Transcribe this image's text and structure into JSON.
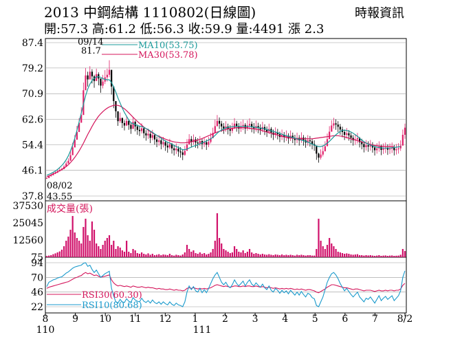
{
  "header": {
    "title": "2013  中鋼結構 1110802(日線圖)",
    "stats": "開:57.3 高:61.2 低:56.3 收:59.9 量:4491 漲 2.3",
    "source": "時報資訊"
  },
  "colors": {
    "up": "#e0206a",
    "down": "#000000",
    "ma10": "#1a9a9a",
    "ma30": "#d4145a",
    "rsi10": "#1a9acc",
    "rsi30": "#d4145a",
    "volume": "#d0106a"
  },
  "chart_data": [
    {
      "type": "candlestick",
      "y_ticks": [
        "87.4",
        "79.2",
        "70.9",
        "62.6",
        "54.4",
        "46.1",
        "37.8"
      ],
      "ylim": [
        37.8,
        87.4
      ],
      "legend": [
        {
          "series": "ma10",
          "label": "MA10(53.75)"
        },
        {
          "series": "ma30",
          "label": "MA30(53.78)"
        }
      ],
      "annotations": {
        "high_date": "09/14",
        "high_value": "81.7",
        "low_date": "08/02",
        "low_value": "43.55"
      },
      "close": [
        43.6,
        44.2,
        44.5,
        45.0,
        45.3,
        45.8,
        46.2,
        46.5,
        47.3,
        48.3,
        49.2,
        51.0,
        53.5,
        56.0,
        58.5,
        61.5,
        64.0,
        72.0,
        76.8,
        75.5,
        78.0,
        76.5,
        75.0,
        77.2,
        75.8,
        73.5,
        74.8,
        76.2,
        77.0,
        78.6,
        73.2,
        68.5,
        65.2,
        62.0,
        63.0,
        61.4,
        60.6,
        62.1,
        60.8,
        59.5,
        61.8,
        60.3,
        59.2,
        58.8,
        59.7,
        58.1,
        57.4,
        57.9,
        56.6,
        57.5,
        56.1,
        55.3,
        55.8,
        54.6,
        55.2,
        54.1,
        53.5,
        54.6,
        53.2,
        52.6,
        53.1,
        52.2,
        51.9,
        51.1,
        52.4,
        54.5,
        56.2,
        55.3,
        56.1,
        55.1,
        54.8,
        55.6,
        54.6,
        55.2,
        54.4,
        55.3,
        56.5,
        58.2,
        60.4,
        62.1,
        61.2,
        60.3,
        59.6,
        60.3,
        59.4,
        58.9,
        59.8,
        61.2,
        60.3,
        59.6,
        60.2,
        60.8,
        59.6,
        60.6,
        61.1,
        60.1,
        59.7,
        60.4,
        59.8,
        59.3,
        60.1,
        59.2,
        58.6,
        59.5,
        58.3,
        57.6,
        58.3,
        57.8,
        56.9,
        57.6,
        56.8,
        57.3,
        56.4,
        57.3,
        56.6,
        55.9,
        56.6,
        55.8,
        56.7,
        55.8,
        55.1,
        55.8,
        55.5,
        54.6,
        54.1,
        51.5,
        50.2,
        51.2,
        52.3,
        53.9,
        56.2,
        58.6,
        60.6,
        61.3,
        60.9,
        60.2,
        59.3,
        58.5,
        57.6,
        58.1,
        57.4,
        56.6,
        55.8,
        56.1,
        56.5,
        55.2,
        54.6,
        53.6,
        54.2,
        53.8,
        54.2,
        53.5,
        52.6,
        53.2,
        53.8,
        52.7,
        53.1,
        53.4,
        52.8,
        53.1,
        53.4,
        52.6,
        52.9,
        53.2,
        54.1,
        57.6,
        59.9
      ],
      "high": [
        43.9,
        44.6,
        44.9,
        45.5,
        45.8,
        46.4,
        46.8,
        47.0,
        47.9,
        49.0,
        50.0,
        52.5,
        55.0,
        57.5,
        60.5,
        63.0,
        66.5,
        74.5,
        79.2,
        78.0,
        79.8,
        78.8,
        77.0,
        79.0,
        77.8,
        75.8,
        77.0,
        78.5,
        79.0,
        81.7,
        77.0,
        71.0,
        67.5,
        64.0,
        64.8,
        63.2,
        62.3,
        63.8,
        62.6,
        61.4,
        63.4,
        62.2,
        60.9,
        60.5,
        61.3,
        60.0,
        59.1,
        59.6,
        58.4,
        59.2,
        57.8,
        57.0,
        57.5,
        56.3,
        56.9,
        55.8,
        55.2,
        56.3,
        55.0,
        54.3,
        54.8,
        53.9,
        53.6,
        52.8,
        54.0,
        56.2,
        57.8,
        57.2,
        57.7,
        56.9,
        56.5,
        57.2,
        56.3,
        56.8,
        56.1,
        56.9,
        58.2,
        59.9,
        62.5,
        64.0,
        63.2,
        62.1,
        61.4,
        62.0,
        61.2,
        60.7,
        61.5,
        63.0,
        62.1,
        61.4,
        61.9,
        62.5,
        61.4,
        62.3,
        62.9,
        61.9,
        61.4,
        62.2,
        61.5,
        61.0,
        61.8,
        61.0,
        60.3,
        61.2,
        60.1,
        59.3,
        60.0,
        59.5,
        58.6,
        59.3,
        58.5,
        59.0,
        58.1,
        59.0,
        58.3,
        57.6,
        58.3,
        57.5,
        58.4,
        57.5,
        56.8,
        57.5,
        57.2,
        56.3,
        55.8,
        53.5,
        51.8,
        52.9,
        54.0,
        55.5,
        58.0,
        60.4,
        62.3,
        63.1,
        62.6,
        62.0,
        61.1,
        60.2,
        59.3,
        59.8,
        59.1,
        58.3,
        57.5,
        57.8,
        58.2,
        56.9,
        56.3,
        55.3,
        55.9,
        55.5,
        55.9,
        55.2,
        54.3,
        54.9,
        55.5,
        54.4,
        54.8,
        55.1,
        54.5,
        54.8,
        55.1,
        54.3,
        54.6,
        54.9,
        55.8,
        59.3,
        61.2
      ],
      "low": [
        43.55,
        43.9,
        44.1,
        44.6,
        44.9,
        45.3,
        45.7,
        46.0,
        46.8,
        47.7,
        48.5,
        50.3,
        52.5,
        55.0,
        57.5,
        60.5,
        63.0,
        70.0,
        74.5,
        73.2,
        75.8,
        74.2,
        72.8,
        75.0,
        73.6,
        71.2,
        72.6,
        74.0,
        74.8,
        76.2,
        70.6,
        66.2,
        63.1,
        60.5,
        61.4,
        59.8,
        59.0,
        60.4,
        59.2,
        57.9,
        60.1,
        58.7,
        57.6,
        57.2,
        58.0,
        56.5,
        55.7,
        56.3,
        54.9,
        55.8,
        54.4,
        53.6,
        54.1,
        52.9,
        53.5,
        52.4,
        51.8,
        52.9,
        51.5,
        50.9,
        51.4,
        50.5,
        50.2,
        49.4,
        50.8,
        52.9,
        54.5,
        53.6,
        54.4,
        53.4,
        53.2,
        54.0,
        52.9,
        53.6,
        52.7,
        53.6,
        54.8,
        56.5,
        58.3,
        60.3,
        59.5,
        58.6,
        57.9,
        58.6,
        57.7,
        57.2,
        58.1,
        59.4,
        58.6,
        57.9,
        58.5,
        59.1,
        57.9,
        58.9,
        59.3,
        58.4,
        58.0,
        58.6,
        58.1,
        57.6,
        58.4,
        57.5,
        56.9,
        57.8,
        56.6,
        55.9,
        56.6,
        56.1,
        55.2,
        55.9,
        55.1,
        55.6,
        54.7,
        55.6,
        54.9,
        54.2,
        54.9,
        54.1,
        55.0,
        54.1,
        53.4,
        54.1,
        53.8,
        52.9,
        52.4,
        49.5,
        48.6,
        49.6,
        50.6,
        52.2,
        54.5,
        56.9,
        58.9,
        59.6,
        59.2,
        58.5,
        57.6,
        56.8,
        55.9,
        56.4,
        55.7,
        54.9,
        54.1,
        54.4,
        54.8,
        53.5,
        52.9,
        51.9,
        52.5,
        52.1,
        52.5,
        51.8,
        50.9,
        51.5,
        52.1,
        51.0,
        51.4,
        51.7,
        51.1,
        51.4,
        51.7,
        50.9,
        51.2,
        51.5,
        52.4,
        55.9,
        56.3
      ],
      "ma10": [
        44.5,
        44.8,
        45.1,
        45.5,
        45.9,
        46.4,
        47.0,
        47.7,
        48.5,
        49.5,
        50.8,
        52.4,
        54.3,
        56.5,
        59.0,
        61.8,
        64.6,
        67.5,
        70.2,
        72.4,
        74.0,
        75.1,
        75.9,
        76.3,
        76.4,
        76.2,
        75.8,
        75.5,
        75.4,
        75.4,
        74.5,
        73.1,
        71.4,
        69.5,
        67.9,
        66.3,
        64.8,
        63.6,
        62.4,
        61.5,
        61.2,
        60.9,
        60.6,
        60.4,
        60.3,
        60.0,
        59.6,
        59.3,
        58.8,
        58.4,
        57.9,
        57.4,
        57.0,
        56.5,
        56.0,
        55.6,
        55.2,
        54.9,
        54.6,
        54.2,
        53.8,
        53.5,
        53.1,
        52.8,
        52.8,
        53.0,
        53.3,
        53.6,
        53.9,
        54.1,
        54.4,
        54.7,
        55.0,
        55.3,
        55.6,
        55.9,
        56.3,
        56.8,
        57.4,
        58.1,
        58.7,
        59.1,
        59.5,
        59.8,
        60.0,
        60.1,
        60.2,
        60.3,
        60.3,
        60.3,
        60.3,
        60.3,
        60.3,
        60.3,
        60.3,
        60.2,
        60.1,
        60.0,
        59.9,
        59.8,
        59.7,
        59.5,
        59.3,
        59.1,
        58.9,
        58.7,
        58.5,
        58.3,
        58.0,
        57.8,
        57.5,
        57.3,
        57.1,
        56.9,
        56.7,
        56.5,
        56.3,
        56.1,
        55.9,
        55.7,
        55.5,
        55.2,
        54.9,
        54.6,
        54.3,
        54.0,
        53.8,
        53.8,
        54.0,
        54.4,
        54.9,
        55.5,
        56.2,
        56.9,
        57.6,
        58.2,
        58.7,
        59.0,
        59.1,
        59.0,
        58.8,
        58.5,
        58.1,
        57.6,
        57.1,
        56.5,
        55.9,
        55.4,
        54.9,
        54.6,
        54.3,
        54.0,
        53.8,
        53.6,
        53.5,
        53.4,
        53.3,
        53.3,
        53.3,
        53.3,
        53.4,
        53.5,
        53.6,
        53.7,
        53.75
      ],
      "ma30": [
        44.0,
        44.3,
        44.6,
        45.0,
        45.3,
        45.6,
        46.0,
        46.4,
        46.8,
        47.3,
        47.9,
        48.6,
        49.4,
        50.3,
        51.3,
        52.4,
        53.6,
        54.9,
        56.3,
        57.7,
        59.0,
        60.3,
        61.5,
        62.6,
        63.6,
        64.4,
        65.1,
        65.7,
        66.2,
        66.6,
        66.9,
        67.1,
        67.2,
        67.1,
        66.9,
        66.5,
        66.0,
        65.4,
        64.7,
        64.0,
        63.3,
        62.6,
        61.9,
        61.3,
        60.7,
        60.1,
        59.6,
        59.1,
        58.6,
        58.2,
        57.8,
        57.4,
        57.1,
        56.8,
        56.5,
        56.2,
        55.9,
        55.7,
        55.5,
        55.3,
        55.2,
        55.1,
        55.0,
        55.0,
        55.0,
        55.1,
        55.2,
        55.3,
        55.5,
        55.7,
        55.9,
        56.1,
        56.4,
        56.7,
        57.0,
        57.3,
        57.6,
        57.9,
        58.2,
        58.5,
        58.7,
        58.9,
        59.1,
        59.3,
        59.5,
        59.6,
        59.7,
        59.8,
        59.9,
        59.9,
        59.9,
        59.9,
        59.9,
        59.8,
        59.7,
        59.6,
        59.5,
        59.4,
        59.3,
        59.1,
        58.9,
        58.7,
        58.5,
        58.3,
        58.1,
        57.9,
        57.7,
        57.5,
        57.3,
        57.1,
        56.9,
        56.8,
        56.7,
        56.6,
        56.5,
        56.4,
        56.4,
        56.3,
        56.3,
        56.3,
        56.3,
        56.3,
        56.3,
        56.3,
        56.4,
        56.5,
        56.6,
        56.7,
        56.8,
        56.9,
        57.0,
        57.1,
        57.2,
        57.3,
        57.3,
        57.3,
        57.2,
        57.1,
        56.9,
        56.7,
        56.5,
        56.3,
        56.1,
        55.9,
        55.7,
        55.5,
        55.3,
        55.1,
        54.9,
        54.7,
        54.5,
        54.3,
        54.2,
        54.1,
        54.0,
        53.9,
        53.9,
        53.8,
        53.8,
        53.8,
        53.8,
        53.78
      ]
    },
    {
      "type": "bar",
      "legend": "成交量(張)",
      "y_ticks": [
        "37530",
        "25045",
        "12560",
        "75"
      ],
      "ylim": [
        0,
        37530
      ],
      "values": [
        900,
        1200,
        1500,
        2200,
        2800,
        3500,
        4200,
        5500,
        8000,
        12000,
        15000,
        20000,
        30000,
        18000,
        14000,
        12000,
        10000,
        22000,
        28000,
        16000,
        12000,
        26000,
        20000,
        10000,
        8000,
        6000,
        9000,
        12000,
        14000,
        16000,
        9000,
        12000,
        6000,
        8000,
        7000,
        5000,
        4000,
        12000,
        4000,
        3000,
        6000,
        5000,
        3000,
        2500,
        3500,
        2500,
        2000,
        2800,
        1800,
        2500,
        1500,
        1800,
        2200,
        1500,
        2000,
        1800,
        1500,
        2500,
        1500,
        1200,
        1800,
        1500,
        1200,
        2000,
        3500,
        9000,
        6000,
        4000,
        5000,
        3000,
        2500,
        3500,
        2500,
        3000,
        2000,
        2500,
        3500,
        6000,
        12000,
        32000,
        14000,
        10000,
        6000,
        5000,
        4000,
        3000,
        3500,
        8000,
        6000,
        4000,
        3500,
        5000,
        3000,
        4000,
        6000,
        3500,
        2500,
        3000,
        2500,
        2000,
        2500,
        2000,
        1800,
        2200,
        1800,
        1500,
        2000,
        1800,
        1500,
        2000,
        1500,
        1800,
        1500,
        1800,
        1500,
        1200,
        1800,
        1500,
        1800,
        1500,
        1200,
        1500,
        1500,
        1200,
        1200,
        6000,
        28000,
        12000,
        8000,
        6000,
        9000,
        14000,
        10000,
        8000,
        6000,
        4000,
        3500,
        3000,
        2500,
        2800,
        2500,
        2000,
        1800,
        2000,
        2200,
        1500,
        1500,
        1200,
        1500,
        1300,
        1500,
        1200,
        1000,
        1200,
        1500,
        1000,
        1200,
        1300,
        1000,
        1200,
        1300,
        1000,
        1100,
        1200,
        1800,
        6000,
        4491
      ]
    },
    {
      "type": "line",
      "y_ticks": [
        "94",
        "70",
        "46",
        "22"
      ],
      "ylim": [
        22,
        94
      ],
      "legend": [
        {
          "series": "rsi30",
          "label": "RSI30(60.30)"
        },
        {
          "series": "rsi10",
          "label": "RSI10(80.68)"
        }
      ],
      "rsi10": [
        55,
        62,
        64,
        66,
        67,
        69,
        70,
        71,
        74,
        77,
        79,
        82,
        85,
        87,
        88,
        89,
        90,
        93,
        94,
        88,
        90,
        83,
        78,
        82,
        76,
        70,
        73,
        76,
        78,
        80,
        52,
        40,
        30,
        28,
        34,
        30,
        29,
        35,
        31,
        29,
        37,
        33,
        31,
        30,
        36,
        31,
        29,
        32,
        28,
        33,
        29,
        27,
        30,
        26,
        30,
        27,
        25,
        30,
        26,
        24,
        28,
        25,
        24,
        22,
        30,
        46,
        56,
        50,
        55,
        48,
        46,
        52,
        45,
        50,
        45,
        52,
        60,
        68,
        74,
        78,
        70,
        62,
        58,
        62,
        56,
        53,
        58,
        66,
        60,
        56,
        60,
        64,
        56,
        62,
        66,
        59,
        56,
        61,
        57,
        54,
        59,
        53,
        50,
        56,
        49,
        46,
        52,
        49,
        44,
        49,
        45,
        48,
        43,
        49,
        45,
        41,
        46,
        41,
        47,
        42,
        38,
        44,
        42,
        37,
        35,
        24,
        22,
        30,
        38,
        50,
        62,
        70,
        76,
        78,
        74,
        68,
        60,
        54,
        48,
        52,
        47,
        42,
        38,
        42,
        46,
        38,
        34,
        30,
        36,
        34,
        38,
        33,
        28,
        34,
        40,
        32,
        36,
        39,
        34,
        37,
        40,
        32,
        36,
        40,
        48,
        70,
        80.68
      ],
      "rsi30": [
        52,
        54,
        55,
        56,
        57,
        58,
        59,
        60,
        61,
        62,
        63,
        65,
        67,
        69,
        70,
        72,
        73,
        76,
        78,
        76,
        77,
        75,
        73,
        74,
        72,
        70,
        71,
        72,
        73,
        74,
        66,
        61,
        58,
        56,
        57,
        56,
        55,
        56,
        55,
        54,
        56,
        55,
        54,
        54,
        55,
        54,
        53,
        54,
        53,
        53,
        52,
        51,
        52,
        51,
        51,
        50,
        50,
        51,
        50,
        49,
        50,
        49,
        49,
        48,
        49,
        52,
        53,
        52,
        53,
        52,
        51,
        52,
        51,
        52,
        51,
        52,
        53,
        55,
        57,
        58,
        57,
        56,
        55,
        56,
        55,
        54,
        55,
        56,
        56,
        55,
        55,
        56,
        55,
        56,
        56,
        55,
        55,
        56,
        55,
        54,
        55,
        54,
        53,
        54,
        53,
        52,
        53,
        52,
        51,
        52,
        51,
        52,
        51,
        52,
        51,
        50,
        51,
        50,
        51,
        50,
        49,
        50,
        50,
        49,
        48,
        46,
        45,
        47,
        49,
        51,
        54,
        56,
        58,
        58,
        57,
        56,
        55,
        54,
        53,
        53,
        52,
        51,
        50,
        51,
        51,
        50,
        49,
        48,
        49,
        49,
        49,
        48,
        47,
        48,
        49,
        48,
        48,
        49,
        48,
        49,
        49,
        48,
        49,
        49,
        51,
        57,
        60.3
      ]
    }
  ],
  "x_axis": {
    "ticks": [
      "8",
      "9",
      "10",
      "11",
      "12",
      "1",
      "2",
      "3",
      "4",
      "5",
      "6",
      "7",
      "8/2"
    ],
    "years": [
      "110",
      "111"
    ]
  }
}
